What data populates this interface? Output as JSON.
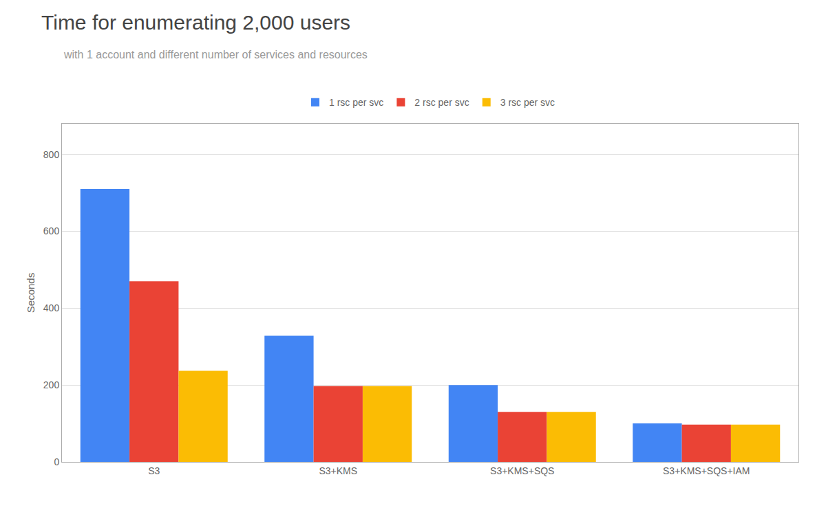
{
  "chart_data": {
    "type": "bar",
    "title": "Time for enumerating 2,000 users",
    "subtitle": "with 1 account and different number of services and resources",
    "categories": [
      "S3",
      "S3+KMS",
      "S3+KMS+SQS",
      "S3+KMS+SQS+IAM"
    ],
    "series": [
      {
        "name": "1 rsc per svc",
        "color": "#4285F4",
        "values": [
          710,
          328,
          200,
          100
        ]
      },
      {
        "name": "2 rsc per svc",
        "color": "#EA4335",
        "values": [
          470,
          197,
          130,
          97
        ]
      },
      {
        "name": "3 rsc per svc",
        "color": "#FBBC04",
        "values": [
          237,
          197,
          130,
          97
        ]
      }
    ],
    "ylabel": "Seconds",
    "ylim": [
      0,
      880
    ],
    "yticks": [
      0,
      200,
      400,
      600,
      800
    ],
    "grid": true,
    "legend": "top"
  }
}
